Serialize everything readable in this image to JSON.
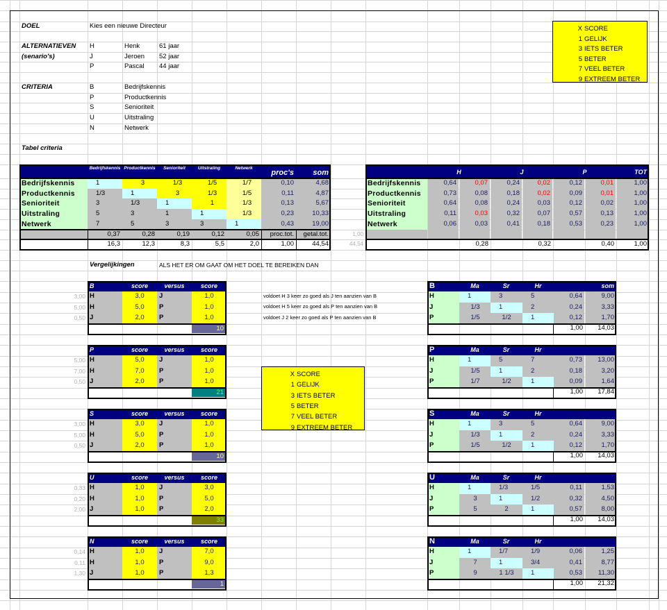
{
  "colors": {
    "header": "#000080",
    "gray": "#c0c0c0",
    "cyan": "#ccffff",
    "yellow": "#ffff00",
    "light_yellow": "#ffff99",
    "green": "#ccffcc",
    "red": "#ff0000",
    "hint": "#b0b0b0"
  },
  "doel": {
    "label": "DOEL",
    "value": "Kies een nieuwe Directeur"
  },
  "alternatives": {
    "label": "ALTERNATIEVEN",
    "label2": "(senario's)",
    "items": [
      {
        "code": "H",
        "name": "Henk",
        "age": "61 jaar"
      },
      {
        "code": "J",
        "name": "Jeroen",
        "age": "52 jaar"
      },
      {
        "code": "P",
        "name": "Pascal",
        "age": "44 jaar"
      }
    ]
  },
  "criteria": {
    "label": "CRITERIA",
    "items": [
      {
        "code": "B",
        "name": "Bedrijfskennis"
      },
      {
        "code": "P",
        "name": "Productkennis"
      },
      {
        "code": "S",
        "name": "Senioriteit"
      },
      {
        "code": "U",
        "name": "Uitstraling"
      },
      {
        "code": "N",
        "name": "Netwerk"
      }
    ]
  },
  "legend_top": {
    "items": [
      {
        "num": "X",
        "text": "SCORE"
      },
      {
        "num": "1",
        "text": "GELIJK"
      },
      {
        "num": "3",
        "text": "IETS BETER"
      },
      {
        "num": "5",
        "text": "BETER"
      },
      {
        "num": "7",
        "text": "VEEL BETER"
      },
      {
        "num": "9",
        "text": "EXTREEM BETER"
      }
    ]
  },
  "legend_mid": {
    "items": [
      {
        "num": "X",
        "text": "SCORE"
      },
      {
        "num": "1",
        "text": "GELIJK"
      },
      {
        "num": "3",
        "text": "IETS BETER"
      },
      {
        "num": "5",
        "text": "BETER"
      },
      {
        "num": "7",
        "text": "VEEL BETER"
      },
      {
        "num": "9",
        "text": "EXTREEM BETER"
      }
    ]
  },
  "tabel_criteria": {
    "title": "Tabel criteria",
    "headers": [
      "Bedrijfskennis",
      "Productkennis",
      "Senioriteit",
      "Uitstraling",
      "Netwerk"
    ],
    "proc_header": "proc's",
    "som_header": "som",
    "rows": [
      {
        "name": "Bedrijfskennis",
        "cells": [
          "1",
          "3",
          "1/3",
          "1/5",
          "1/7"
        ],
        "proc": "0,10",
        "som": "4,68"
      },
      {
        "name": "Productkennis",
        "cells": [
          "1/3",
          "1",
          "3",
          "1/3",
          "1/5"
        ],
        "proc": "0,11",
        "som": "4,87"
      },
      {
        "name": "Senioriteit",
        "cells": [
          "3",
          "1/3",
          "1",
          "1",
          "1/3"
        ],
        "proc": "0,13",
        "som": "5,67"
      },
      {
        "name": "Uitstraling",
        "cells": [
          "5",
          "3",
          "1",
          "1",
          "1/3"
        ],
        "proc": "0,23",
        "som": "10,33"
      },
      {
        "name": "Netwerk",
        "cells": [
          "7",
          "5",
          "3",
          "3",
          "1"
        ],
        "proc": "0,43",
        "som": "19,00"
      }
    ],
    "col_props": [
      "0,37",
      "0,28",
      "0,19",
      "0,12",
      "0,05"
    ],
    "proc_tot_label": "proc.tot.",
    "getal_tot_label": "getal.tot.",
    "col_sums": [
      "16,3",
      "12,3",
      "8,3",
      "5,5",
      "2,0"
    ],
    "proc_total": "1,00",
    "getal_total": "44,54",
    "side_values": [
      "1,00",
      "44,54"
    ]
  },
  "result_table": {
    "headers": [
      "H",
      "J",
      "P",
      "TOT"
    ],
    "rows": [
      {
        "name": "Bedrijfskennis",
        "values": [
          "0,64",
          "0,07",
          "0,24",
          "0,02",
          "0,12",
          "0,01"
        ],
        "red": [
          false,
          true,
          false,
          true,
          false,
          true
        ],
        "tot": "1,00"
      },
      {
        "name": "Productkennis",
        "values": [
          "0,73",
          "0,08",
          "0,18",
          "0,02",
          "0,09",
          "0,01"
        ],
        "red": [
          false,
          false,
          false,
          true,
          false,
          true
        ],
        "tot": "1,00"
      },
      {
        "name": "Senioriteit",
        "values": [
          "0,64",
          "0,08",
          "0,24",
          "0,03",
          "0,12",
          "0,02"
        ],
        "red": [
          false,
          false,
          false,
          false,
          false,
          false
        ],
        "tot": "1,00"
      },
      {
        "name": "Uitstraling",
        "values": [
          "0,11",
          "0,03",
          "0,32",
          "0,07",
          "0,57",
          "0,13"
        ],
        "red": [
          false,
          true,
          false,
          false,
          false,
          false
        ],
        "tot": "1,00"
      },
      {
        "name": "Netwerk",
        "values": [
          "0,06",
          "0,03",
          "0,41",
          "0,18",
          "0,53",
          "0,23"
        ],
        "red": [
          false,
          false,
          false,
          false,
          false,
          false
        ],
        "tot": "1,00"
      }
    ],
    "totals": [
      "",
      "0,28",
      "",
      "0,32",
      "",
      "0,40",
      "1,00"
    ]
  },
  "vergelijkingen": {
    "title": "Vergelijkingen",
    "subtitle": "ALS HET ER OM GAAT OM HET DOEL TE BEREIKEN DAN",
    "notes": [
      "voldoet H 3 keer zo goed als J ten aanzien van B",
      "voldoet H 5 keer zo goed als P ten aanzien van B",
      "voldoet J 2 keer zo goed als P ten aanzien van B"
    ]
  },
  "comparisons": [
    {
      "criterion": "B",
      "headers": [
        "score",
        "versus",
        "score"
      ],
      "rows": [
        {
          "hint": "3,00",
          "a": "H",
          "sa": "3,0",
          "b": "J",
          "sb": "1,0"
        },
        {
          "hint": "5,00",
          "a": "H",
          "sa": "5,0",
          "b": "P",
          "sb": "1,0"
        },
        {
          "hint": "0,50",
          "a": "J",
          "sa": "2,0",
          "b": "P",
          "sb": "1,0"
        }
      ],
      "total": "10",
      "total_bg": "#666699",
      "total_color": "#ffff66"
    },
    {
      "criterion": "P",
      "headers": [
        "score",
        "versus",
        "score"
      ],
      "rows": [
        {
          "hint": "5,00",
          "a": "H",
          "sa": "5,0",
          "b": "J",
          "sb": "1,0"
        },
        {
          "hint": "7,00",
          "a": "H",
          "sa": "7,0",
          "b": "P",
          "sb": "1,0"
        },
        {
          "hint": "0,50",
          "a": "J",
          "sa": "2,0",
          "b": "P",
          "sb": "1,0"
        }
      ],
      "total": "21",
      "total_bg": "#008080",
      "total_color": "#66ff33"
    },
    {
      "criterion": "S",
      "headers": [
        "score",
        "versus",
        "score"
      ],
      "rows": [
        {
          "hint": "3,00",
          "a": "H",
          "sa": "3,0",
          "b": "J",
          "sb": "1,0"
        },
        {
          "hint": "5,00",
          "a": "H",
          "sa": "5,0",
          "b": "P",
          "sb": "1,0"
        },
        {
          "hint": "0,50",
          "a": "J",
          "sa": "2,0",
          "b": "P",
          "sb": "1,0"
        }
      ],
      "total": "10",
      "total_bg": "#666699",
      "total_color": "#ffff66"
    },
    {
      "criterion": "U",
      "headers": [
        "score",
        "versus",
        "score"
      ],
      "rows": [
        {
          "hint": "0,33",
          "a": "H",
          "sa": "1,0",
          "b": "J",
          "sb": "3,0"
        },
        {
          "hint": "0,20",
          "a": "H",
          "sa": "1,0",
          "b": "P",
          "sb": "5,0"
        },
        {
          "hint": "2,00",
          "a": "J",
          "sa": "1,0",
          "b": "P",
          "sb": "2,0"
        }
      ],
      "total": "33",
      "total_bg": "#808000",
      "total_color": "#66ff33"
    },
    {
      "criterion": "N",
      "headers": [
        "score",
        "versus",
        "score"
      ],
      "rows": [
        {
          "hint": "0,14",
          "a": "H",
          "sa": "1,0",
          "b": "J",
          "sb": "7,0"
        },
        {
          "hint": "0,11",
          "a": "H",
          "sa": "1,0",
          "b": "P",
          "sb": "9,0"
        },
        {
          "hint": "1,30",
          "a": "J",
          "sa": "1,0",
          "b": "P",
          "sb": "1,3"
        }
      ],
      "total": "1",
      "total_bg": "#666699",
      "total_color": "#ffff66"
    }
  ],
  "matrices": [
    {
      "criterion": "B",
      "cols": [
        "Ma",
        "Sr",
        "Hr"
      ],
      "som_label": "som",
      "rows": [
        {
          "alt": "H",
          "cells": [
            "1",
            "3",
            "5"
          ],
          "weight": "0,64",
          "som": "9,00"
        },
        {
          "alt": "J",
          "cells": [
            "1/3",
            "1",
            "2"
          ],
          "weight": "0,24",
          "som": "3,33"
        },
        {
          "alt": "P",
          "cells": [
            "1/5",
            "1/2",
            "1"
          ],
          "weight": "0,12",
          "som": "1,70"
        }
      ],
      "weight_total": "1,00",
      "som_total": "14,03"
    },
    {
      "criterion": "P",
      "cols": [
        "Ma",
        "Sr",
        "Hr"
      ],
      "som_label": "",
      "rows": [
        {
          "alt": "H",
          "cells": [
            "1",
            "5",
            "7"
          ],
          "weight": "0,73",
          "som": "13,00"
        },
        {
          "alt": "J",
          "cells": [
            "1/5",
            "1",
            "2"
          ],
          "weight": "0,18",
          "som": "3,20"
        },
        {
          "alt": "P",
          "cells": [
            "1/7",
            "1/2",
            "1"
          ],
          "weight": "0,09",
          "som": "1,64"
        }
      ],
      "weight_total": "1,00",
      "som_total": "17,84"
    },
    {
      "criterion": "S",
      "cols": [
        "Ma",
        "Sr",
        "Hr"
      ],
      "som_label": "",
      "rows": [
        {
          "alt": "H",
          "cells": [
            "1",
            "3",
            "5"
          ],
          "weight": "0,64",
          "som": "9,00"
        },
        {
          "alt": "J",
          "cells": [
            "1/3",
            "1",
            "2"
          ],
          "weight": "0,24",
          "som": "3,33"
        },
        {
          "alt": "P",
          "cells": [
            "1/5",
            "1/2",
            "1"
          ],
          "weight": "0,12",
          "som": "1,70"
        }
      ],
      "weight_total": "1,00",
      "som_total": "14,03"
    },
    {
      "criterion": "U",
      "cols": [
        "Ma",
        "Sr",
        "Hr"
      ],
      "som_label": "",
      "rows": [
        {
          "alt": "H",
          "cells": [
            "1",
            "1/3",
            "1/5"
          ],
          "weight": "0,11",
          "som": "1,53"
        },
        {
          "alt": "J",
          "cells": [
            "3",
            "1",
            "1/2"
          ],
          "weight": "0,32",
          "som": "4,50"
        },
        {
          "alt": "P",
          "cells": [
            "5",
            "2",
            "1"
          ],
          "weight": "0,57",
          "som": "8,00"
        }
      ],
      "weight_total": "1,00",
      "som_total": "14,03"
    },
    {
      "criterion": "N",
      "cols": [
        "Ma",
        "Sr",
        "Hr"
      ],
      "som_label": "",
      "rows": [
        {
          "alt": "H",
          "cells": [
            "1",
            "1/7",
            "1/9"
          ],
          "weight": "0,06",
          "som": "1,25"
        },
        {
          "alt": "J",
          "cells": [
            "7",
            "1",
            "3/4"
          ],
          "weight": "0,41",
          "som": "8,77"
        },
        {
          "alt": "P",
          "cells": [
            "9",
            "1 1/3",
            "1"
          ],
          "weight": "0,53",
          "som": "11,30"
        }
      ],
      "weight_total": "1,00",
      "som_total": "21,32"
    }
  ]
}
